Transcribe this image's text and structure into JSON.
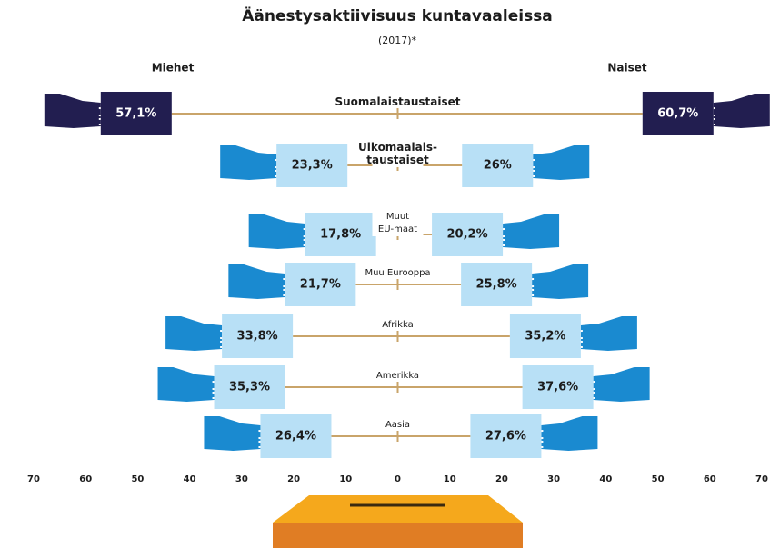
{
  "chart_data": {
    "type": "butterfly",
    "title": "Äänestysaktiivisuus kuntavaaleissa",
    "subtitle": "(2017)*",
    "categories": [
      "Suomalaistaustaiset",
      "Ulkomaalais-\ntaustaiset",
      "Muut\nEU-maat",
      "Muu Eurooppa",
      "Afrikka",
      "Amerikka",
      "Aasia"
    ],
    "series": [
      {
        "name": "Miehet",
        "colors": [
          "#221e50",
          "#b8e0f6",
          "#b8e0f6",
          "#b8e0f6",
          "#b8e0f6",
          "#b8e0f6",
          "#b8e0f6"
        ],
        "values": [
          57.1,
          23.3,
          17.8,
          21.7,
          33.8,
          35.3,
          26.4
        ],
        "value_labels": [
          "57,1%",
          "23,3%",
          "17,8%",
          "21,7%",
          "33,8%",
          "35,3%",
          "26,4%"
        ]
      },
      {
        "name": "Naiset",
        "colors": [
          "#221e50",
          "#b8e0f6",
          "#b8e0f6",
          "#b8e0f6",
          "#b8e0f6",
          "#b8e0f6",
          "#b8e0f6"
        ],
        "values": [
          60.7,
          26,
          20.2,
          25.8,
          35.2,
          37.6,
          27.6
        ],
        "value_labels": [
          "60,7%",
          "26%",
          "20,2%",
          "25,8%",
          "35,2%",
          "37,6%",
          "27,6%"
        ]
      }
    ],
    "xlim": [
      -70,
      70
    ],
    "xticks": [
      {
        "value": -70,
        "label": "70"
      },
      {
        "value": -60,
        "label": "60"
      },
      {
        "value": -50,
        "label": "50"
      },
      {
        "value": -40,
        "label": "40"
      },
      {
        "value": -30,
        "label": "30"
      },
      {
        "value": -20,
        "label": "20"
      },
      {
        "value": -10,
        "label": "10"
      },
      0,
      10,
      20,
      30,
      40,
      50,
      60,
      70
    ]
  }
}
